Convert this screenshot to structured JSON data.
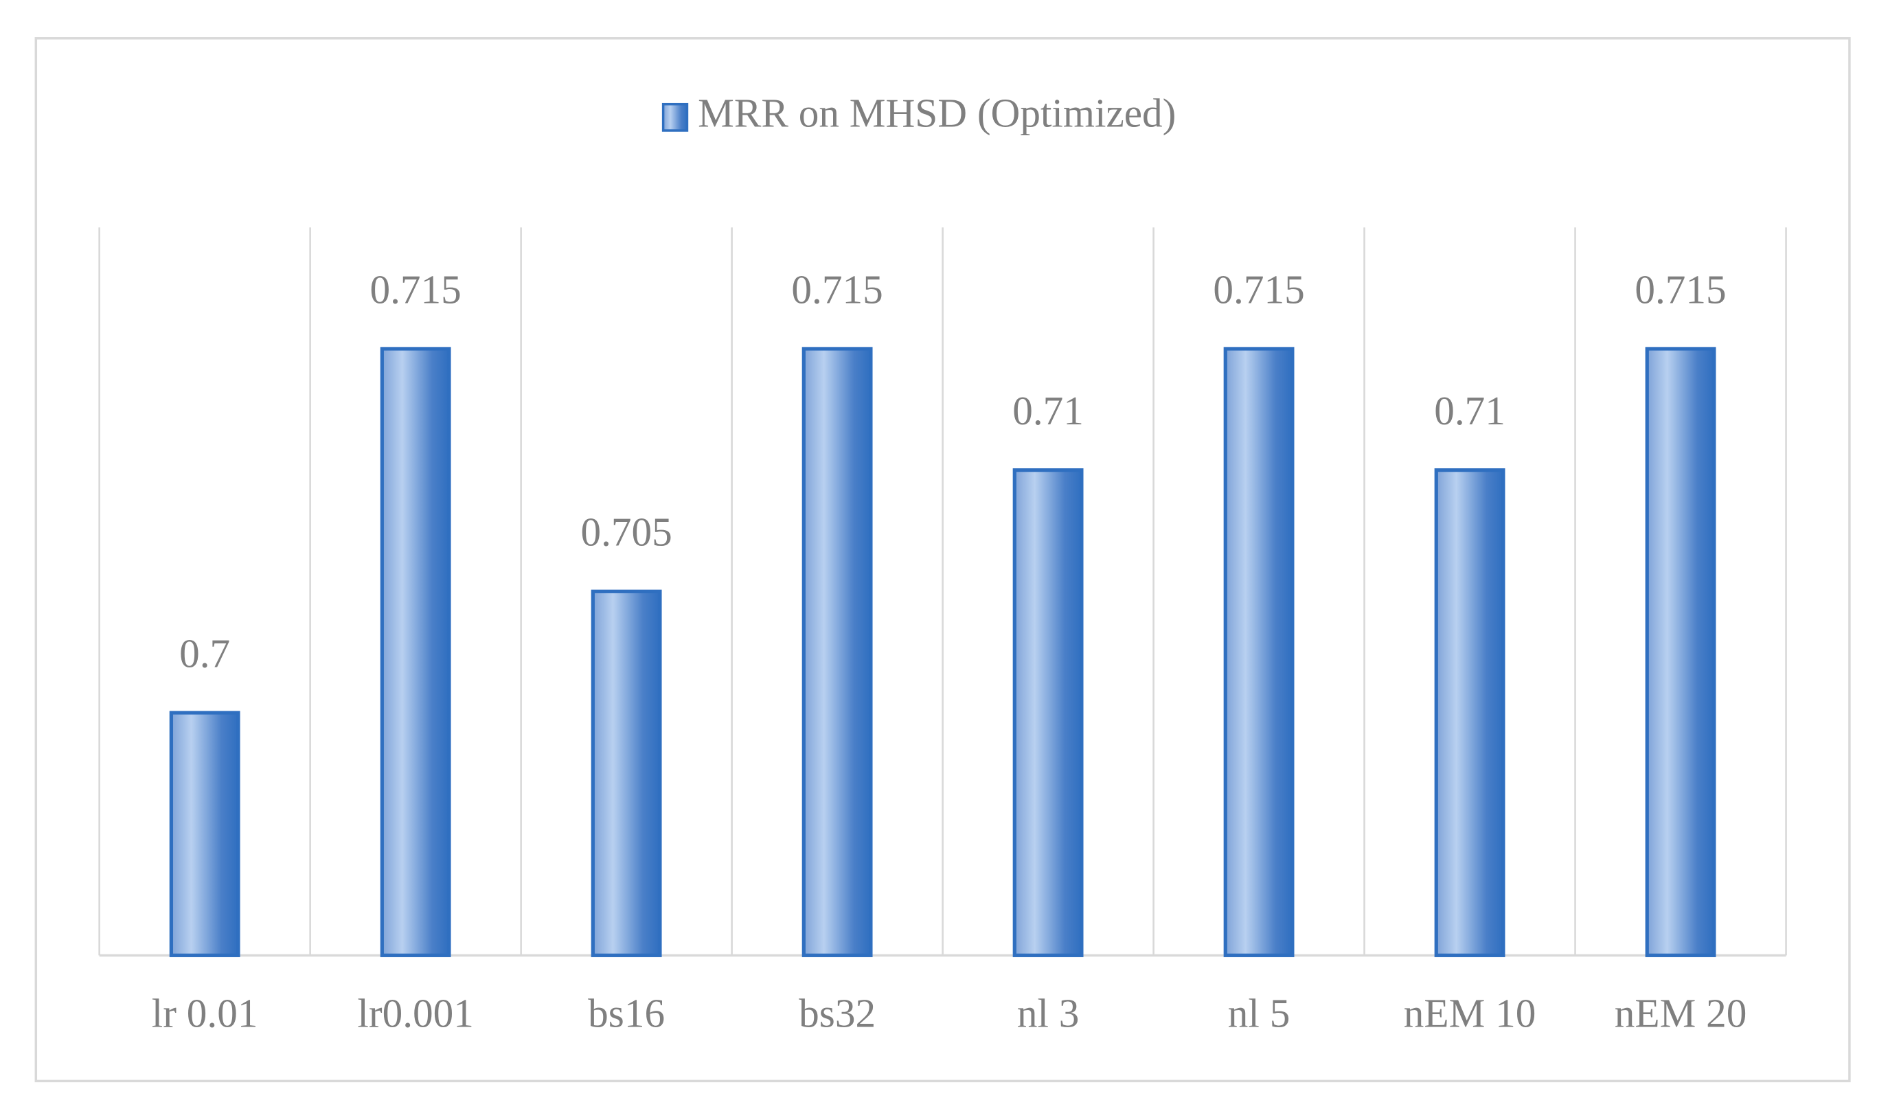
{
  "chart_data": {
    "type": "bar",
    "categories": [
      "lr 0.01",
      "lr0.001",
      "bs16",
      "bs32",
      "nl 3",
      "nl 5",
      "nEM 10",
      "nEM 20"
    ],
    "series": [
      {
        "name": "MRR on MHSD (Optimized)",
        "color": "#2f6fc0",
        "values": [
          0.7,
          0.715,
          0.705,
          0.715,
          0.71,
          0.715,
          0.71,
          0.715
        ]
      }
    ],
    "ylim": [
      0.69,
      0.72
    ],
    "grid": true,
    "legend": "top"
  }
}
